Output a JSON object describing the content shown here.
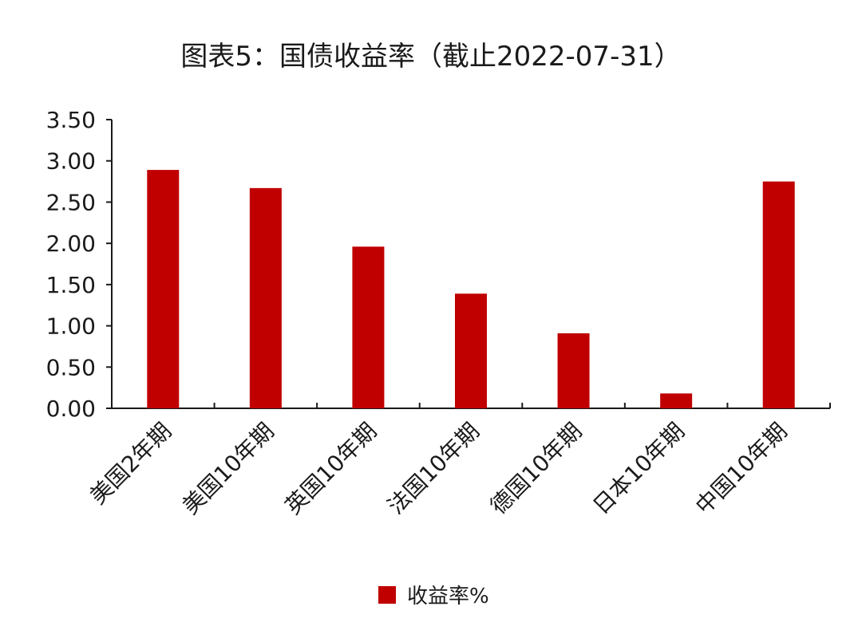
{
  "chart_data": {
    "type": "bar",
    "title": "图表5：国债收益率（截止2022-07-31）",
    "categories": [
      "美国2年期",
      "美国10年期",
      "英国10年期",
      "法国10年期",
      "德国10年期",
      "日本10年期",
      "中国10年期"
    ],
    "series": [
      {
        "name": "收益率%",
        "color": "#c00000",
        "values": [
          2.89,
          2.67,
          1.96,
          1.39,
          0.91,
          0.18,
          2.75
        ]
      }
    ],
    "y_ticks": [
      "0.00",
      "0.50",
      "1.00",
      "1.50",
      "2.00",
      "2.50",
      "3.00",
      "3.50"
    ],
    "ylim": [
      0,
      3.5
    ],
    "grid": false,
    "legend": "bottom-center"
  }
}
